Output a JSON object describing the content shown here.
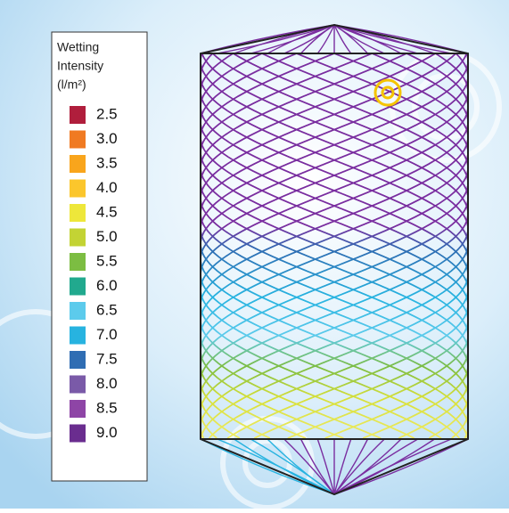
{
  "legend": {
    "title": [
      "Wetting",
      "Intensity",
      "(l/m²)"
    ],
    "items": [
      {
        "label": "2.5",
        "color": "#b01e3c"
      },
      {
        "label": "3.0",
        "color": "#f07a22"
      },
      {
        "label": "3.5",
        "color": "#f9a51c"
      },
      {
        "label": "4.0",
        "color": "#fbc62c"
      },
      {
        "label": "4.5",
        "color": "#eee73a"
      },
      {
        "label": "5.0",
        "color": "#c3d334"
      },
      {
        "label": "5.5",
        "color": "#7cbd42"
      },
      {
        "label": "6.0",
        "color": "#21a98e"
      },
      {
        "label": "6.5",
        "color": "#5ccbec"
      },
      {
        "label": "7.0",
        "color": "#27b3e0"
      },
      {
        "label": "7.5",
        "color": "#2f6db3"
      },
      {
        "label": "8.0",
        "color": "#7a5aa8"
      },
      {
        "label": "8.5",
        "color": "#8e45a6"
      },
      {
        "label": "9.0",
        "color": "#6a2d8f"
      }
    ]
  }
}
